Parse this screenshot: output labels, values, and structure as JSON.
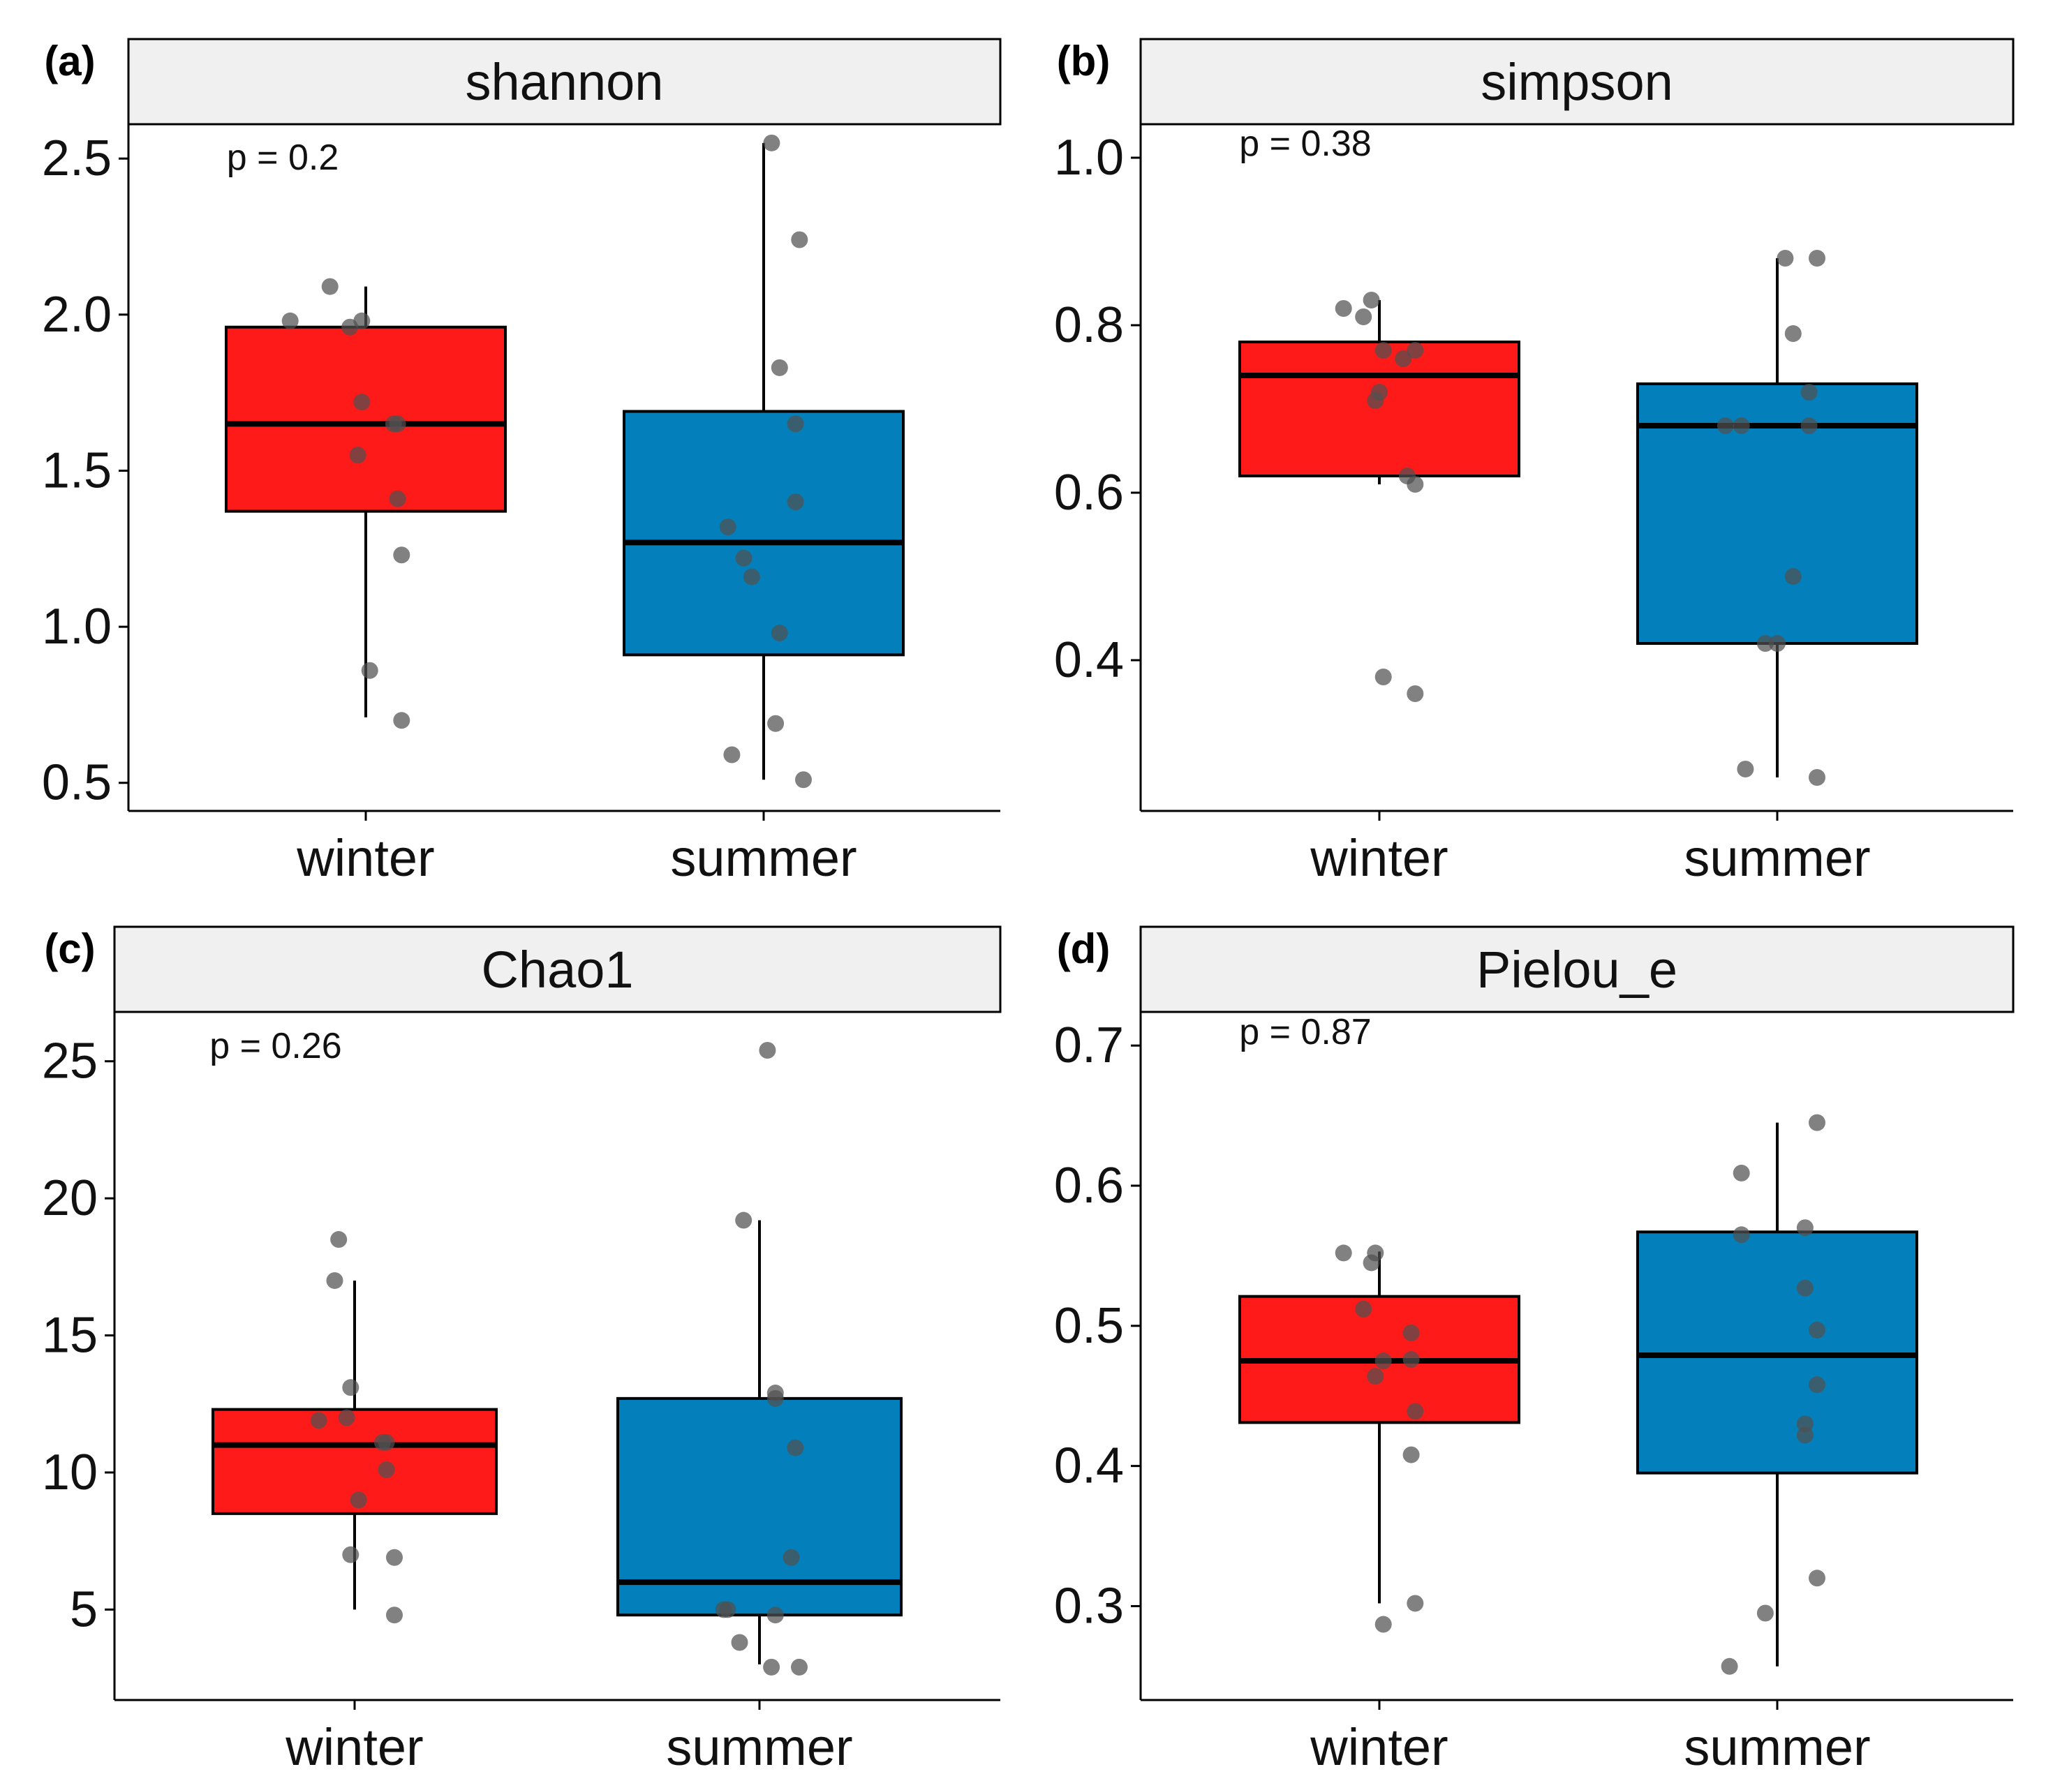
{
  "figure": {
    "colors": {
      "winter": "#ff1a1a",
      "summer": "#0380bc",
      "point": "#505050",
      "strip": "#f0f0f0"
    }
  },
  "chart_data": [
    {
      "type": "boxplot",
      "panel_label": "(a)",
      "title": "shannon",
      "p_label": "p = 0.2",
      "categories": [
        "winter",
        "summer"
      ],
      "yticks": [
        0.5,
        1.0,
        1.5,
        2.0,
        2.5
      ],
      "yticklabels": [
        "0.5",
        "1.0",
        "1.5",
        "2.0",
        "2.5"
      ],
      "ylim": [
        0.41,
        2.61
      ],
      "boxes": [
        {
          "group": "winter",
          "q1": 1.37,
          "median": 1.65,
          "q3": 1.96,
          "whisker_low": 0.71,
          "whisker_high": 2.09
        },
        {
          "group": "summer",
          "q1": 0.91,
          "median": 1.27,
          "q3": 1.69,
          "whisker_low": 0.51,
          "whisker_high": 2.55
        }
      ],
      "points": [
        [
          [
            -0.09,
            2.09
          ],
          [
            -0.19,
            1.98
          ],
          [
            -0.01,
            1.98
          ],
          [
            -0.04,
            1.96
          ],
          [
            -0.01,
            1.72
          ],
          [
            0.08,
            1.65
          ],
          [
            0.07,
            1.65
          ],
          [
            -0.02,
            1.55
          ],
          [
            0.08,
            1.41
          ],
          [
            0.09,
            1.23
          ],
          [
            0.01,
            0.86
          ],
          [
            0.09,
            0.7
          ]
        ],
        [
          [
            0.02,
            2.55
          ],
          [
            0.09,
            2.24
          ],
          [
            0.04,
            1.83
          ],
          [
            0.08,
            1.65
          ],
          [
            0.08,
            1.4
          ],
          [
            -0.09,
            1.32
          ],
          [
            -0.05,
            1.22
          ],
          [
            -0.03,
            1.16
          ],
          [
            0.04,
            0.98
          ],
          [
            0.03,
            0.69
          ],
          [
            -0.08,
            0.59
          ],
          [
            0.1,
            0.51
          ]
        ]
      ]
    },
    {
      "type": "boxplot",
      "panel_label": "(b)",
      "title": "simpson",
      "p_label": "p = 0.38",
      "categories": [
        "winter",
        "summer"
      ],
      "yticks": [
        0.4,
        0.6,
        0.8,
        1.0
      ],
      "yticklabels": [
        "0.4",
        "0.6",
        "0.8",
        "1.0"
      ],
      "ylim": [
        0.22,
        1.04
      ],
      "boxes": [
        {
          "group": "winter",
          "q1": 0.62,
          "median": 0.74,
          "q3": 0.78,
          "whisker_low": 0.61,
          "whisker_high": 0.83
        },
        {
          "group": "summer",
          "q1": 0.42,
          "median": 0.68,
          "q3": 0.73,
          "whisker_low": 0.26,
          "whisker_high": 0.88
        }
      ],
      "points": [
        [
          [
            -0.09,
            0.82
          ],
          [
            -0.04,
            0.81
          ],
          [
            -0.02,
            0.83
          ],
          [
            0.01,
            0.77
          ],
          [
            0.09,
            0.77
          ],
          [
            0.06,
            0.76
          ],
          [
            0.0,
            0.72
          ],
          [
            -0.01,
            0.71
          ],
          [
            0.07,
            0.62
          ],
          [
            0.09,
            0.61
          ],
          [
            0.01,
            0.38
          ],
          [
            0.09,
            0.36
          ]
        ],
        [
          [
            0.02,
            0.88
          ],
          [
            0.1,
            0.88
          ],
          [
            0.04,
            0.79
          ],
          [
            0.08,
            0.72
          ],
          [
            0.08,
            0.68
          ],
          [
            -0.13,
            0.68
          ],
          [
            -0.09,
            0.68
          ],
          [
            0.04,
            0.5
          ],
          [
            -0.03,
            0.42
          ],
          [
            0.0,
            0.42
          ],
          [
            -0.08,
            0.27
          ],
          [
            0.1,
            0.26
          ]
        ]
      ]
    },
    {
      "type": "boxplot",
      "panel_label": "(c)",
      "title": "Chao1",
      "p_label": "p = 0.26",
      "categories": [
        "winter",
        "summer"
      ],
      "yticks": [
        5,
        10,
        15,
        20,
        25
      ],
      "yticklabels": [
        "5",
        "10",
        "15",
        "20",
        "25"
      ],
      "ylim": [
        1.7,
        26.8
      ],
      "boxes": [
        {
          "group": "winter",
          "q1": 8.5,
          "median": 11.0,
          "q3": 12.3,
          "whisker_low": 5.0,
          "whisker_high": 17.0
        },
        {
          "group": "summer",
          "q1": 4.8,
          "median": 6.0,
          "q3": 12.7,
          "whisker_low": 3.0,
          "whisker_high": 19.2
        }
      ],
      "points": [
        [
          [
            -0.04,
            18.5
          ],
          [
            -0.05,
            17.0
          ],
          [
            -0.01,
            13.1
          ],
          [
            -0.09,
            11.9
          ],
          [
            -0.02,
            12.0
          ],
          [
            0.08,
            11.1
          ],
          [
            0.07,
            11.1
          ],
          [
            0.08,
            10.1
          ],
          [
            0.01,
            9.0
          ],
          [
            -0.01,
            7.0
          ],
          [
            0.1,
            6.9
          ],
          [
            0.1,
            4.8
          ]
        ],
        [
          [
            0.02,
            25.4
          ],
          [
            -0.04,
            19.2
          ],
          [
            0.04,
            12.9
          ],
          [
            0.04,
            12.7
          ],
          [
            0.09,
            10.9
          ],
          [
            0.08,
            6.9
          ],
          [
            -0.09,
            5.0
          ],
          [
            0.04,
            4.8
          ],
          [
            -0.08,
            5.0
          ],
          [
            -0.05,
            3.8
          ],
          [
            0.03,
            2.9
          ],
          [
            0.1,
            2.9
          ]
        ]
      ]
    },
    {
      "type": "boxplot",
      "panel_label": "(d)",
      "title": "Pielou_e",
      "p_label": "p = 0.87",
      "categories": [
        "winter",
        "summer"
      ],
      "yticks": [
        0.3,
        0.4,
        0.5,
        0.6,
        0.7
      ],
      "yticklabels": [
        "0.3",
        "0.4",
        "0.5",
        "0.6",
        "0.7"
      ],
      "ylim": [
        0.233,
        0.724
      ],
      "boxes": [
        {
          "group": "winter",
          "q1": 0.431,
          "median": 0.475,
          "q3": 0.521,
          "whisker_low": 0.302,
          "whisker_high": 0.553
        },
        {
          "group": "summer",
          "q1": 0.395,
          "median": 0.479,
          "q3": 0.567,
          "whisker_low": 0.257,
          "whisker_high": 0.645
        }
      ],
      "points": [
        [
          [
            -0.09,
            0.552
          ],
          [
            -0.01,
            0.552
          ],
          [
            -0.02,
            0.545
          ],
          [
            -0.04,
            0.512
          ],
          [
            0.08,
            0.495
          ],
          [
            0.08,
            0.476
          ],
          [
            0.01,
            0.475
          ],
          [
            -0.01,
            0.464
          ],
          [
            0.09,
            0.439
          ],
          [
            0.08,
            0.408
          ],
          [
            0.09,
            0.302
          ],
          [
            0.01,
            0.287
          ]
        ],
        [
          [
            0.1,
            0.645
          ],
          [
            -0.09,
            0.609
          ],
          [
            0.07,
            0.57
          ],
          [
            -0.09,
            0.565
          ],
          [
            0.07,
            0.527
          ],
          [
            0.1,
            0.497
          ],
          [
            0.1,
            0.458
          ],
          [
            0.07,
            0.43
          ],
          [
            0.07,
            0.422
          ],
          [
            0.1,
            0.32
          ],
          [
            -0.03,
            0.295
          ],
          [
            -0.12,
            0.257
          ]
        ]
      ]
    }
  ]
}
